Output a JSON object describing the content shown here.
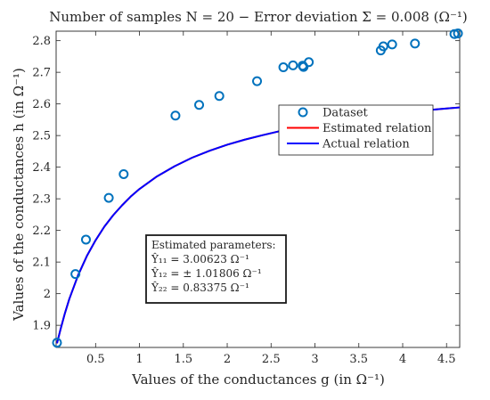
{
  "chart_data": {
    "type": "scatter",
    "title": "Number of samples N = 20 − Error deviation Σ = 0.008 (Ω⁻¹)",
    "xlabel": "Values of the conductances g (in Ω⁻¹)",
    "ylabel": "Values of the conductances h (in Ω⁻¹)",
    "xlim": [
      0.05,
      4.65
    ],
    "ylim": [
      1.83,
      2.83
    ],
    "xticks": [
      "0.5",
      "1",
      "1.5",
      "2",
      "2.5",
      "3",
      "3.5",
      "4",
      "4.5"
    ],
    "xtick_values": [
      0.5,
      1,
      1.5,
      2,
      2.5,
      3,
      3.5,
      4,
      4.5
    ],
    "yticks": [
      "1.9",
      "2",
      "2.1",
      "2.2",
      "2.3",
      "2.4",
      "2.5",
      "2.6",
      "2.7",
      "2.8"
    ],
    "ytick_values": [
      1.9,
      2.0,
      2.1,
      2.2,
      2.3,
      2.4,
      2.5,
      2.6,
      2.7,
      2.8
    ],
    "grid": false,
    "series": [
      {
        "name": "Dataset",
        "kind": "markers",
        "color": "#0072BD",
        "x": [
          0.06,
          0.27,
          0.39,
          0.65,
          0.82,
          1.41,
          1.68,
          1.91,
          2.34,
          2.64,
          2.75,
          2.86,
          2.87,
          2.93,
          3.75,
          3.78,
          3.88,
          4.14,
          4.59,
          4.63
        ],
        "y": [
          1.845,
          2.062,
          2.171,
          2.303,
          2.378,
          2.563,
          2.597,
          2.625,
          2.672,
          2.716,
          2.722,
          2.721,
          2.717,
          2.732,
          2.769,
          2.782,
          2.788,
          2.791,
          2.821,
          2.823
        ]
      },
      {
        "name": "Estimated relation",
        "kind": "line",
        "color": "#ff0000",
        "x": [
          0.06,
          0.1,
          0.15,
          0.2,
          0.3,
          0.4,
          0.5,
          0.6,
          0.7,
          0.8,
          0.9,
          1.0,
          1.2,
          1.4,
          1.6,
          1.8,
          2.0,
          2.2,
          2.4,
          2.6,
          2.8,
          3.0,
          3.2,
          3.4,
          3.6,
          3.8,
          4.0,
          4.2,
          4.4,
          4.65
        ],
        "y": [
          1.843,
          1.887,
          1.938,
          1.983,
          2.058,
          2.119,
          2.169,
          2.212,
          2.248,
          2.279,
          2.307,
          2.331,
          2.371,
          2.403,
          2.43,
          2.452,
          2.471,
          2.487,
          2.501,
          2.514,
          2.525,
          2.535,
          2.544,
          2.552,
          2.559,
          2.566,
          2.572,
          2.578,
          2.583,
          2.589
        ]
      },
      {
        "name": "Actual relation",
        "kind": "line",
        "color": "#0000ff",
        "x": [
          0.06,
          0.1,
          0.15,
          0.2,
          0.3,
          0.4,
          0.5,
          0.6,
          0.7,
          0.8,
          0.9,
          1.0,
          1.2,
          1.4,
          1.6,
          1.8,
          2.0,
          2.2,
          2.4,
          2.6,
          2.8,
          3.0,
          3.2,
          3.4,
          3.6,
          3.8,
          4.0,
          4.2,
          4.4,
          4.65
        ],
        "y": [
          1.843,
          1.887,
          1.938,
          1.983,
          2.058,
          2.119,
          2.169,
          2.212,
          2.248,
          2.279,
          2.307,
          2.331,
          2.371,
          2.403,
          2.43,
          2.452,
          2.471,
          2.487,
          2.501,
          2.514,
          2.525,
          2.535,
          2.544,
          2.552,
          2.559,
          2.566,
          2.572,
          2.578,
          2.583,
          2.589
        ]
      }
    ],
    "legend": {
      "placement": "right-middle",
      "entries": [
        "Dataset",
        "Estimated relation",
        "Actual relation"
      ]
    },
    "annotation": {
      "lines": [
        "Estimated parameters:",
        "Ŷ₁₁ = 3.00623 Ω⁻¹",
        "Ŷ₁₂ = ± 1.01806 Ω⁻¹",
        "Ŷ₂₂ = 0.83375 Ω⁻¹"
      ]
    }
  }
}
